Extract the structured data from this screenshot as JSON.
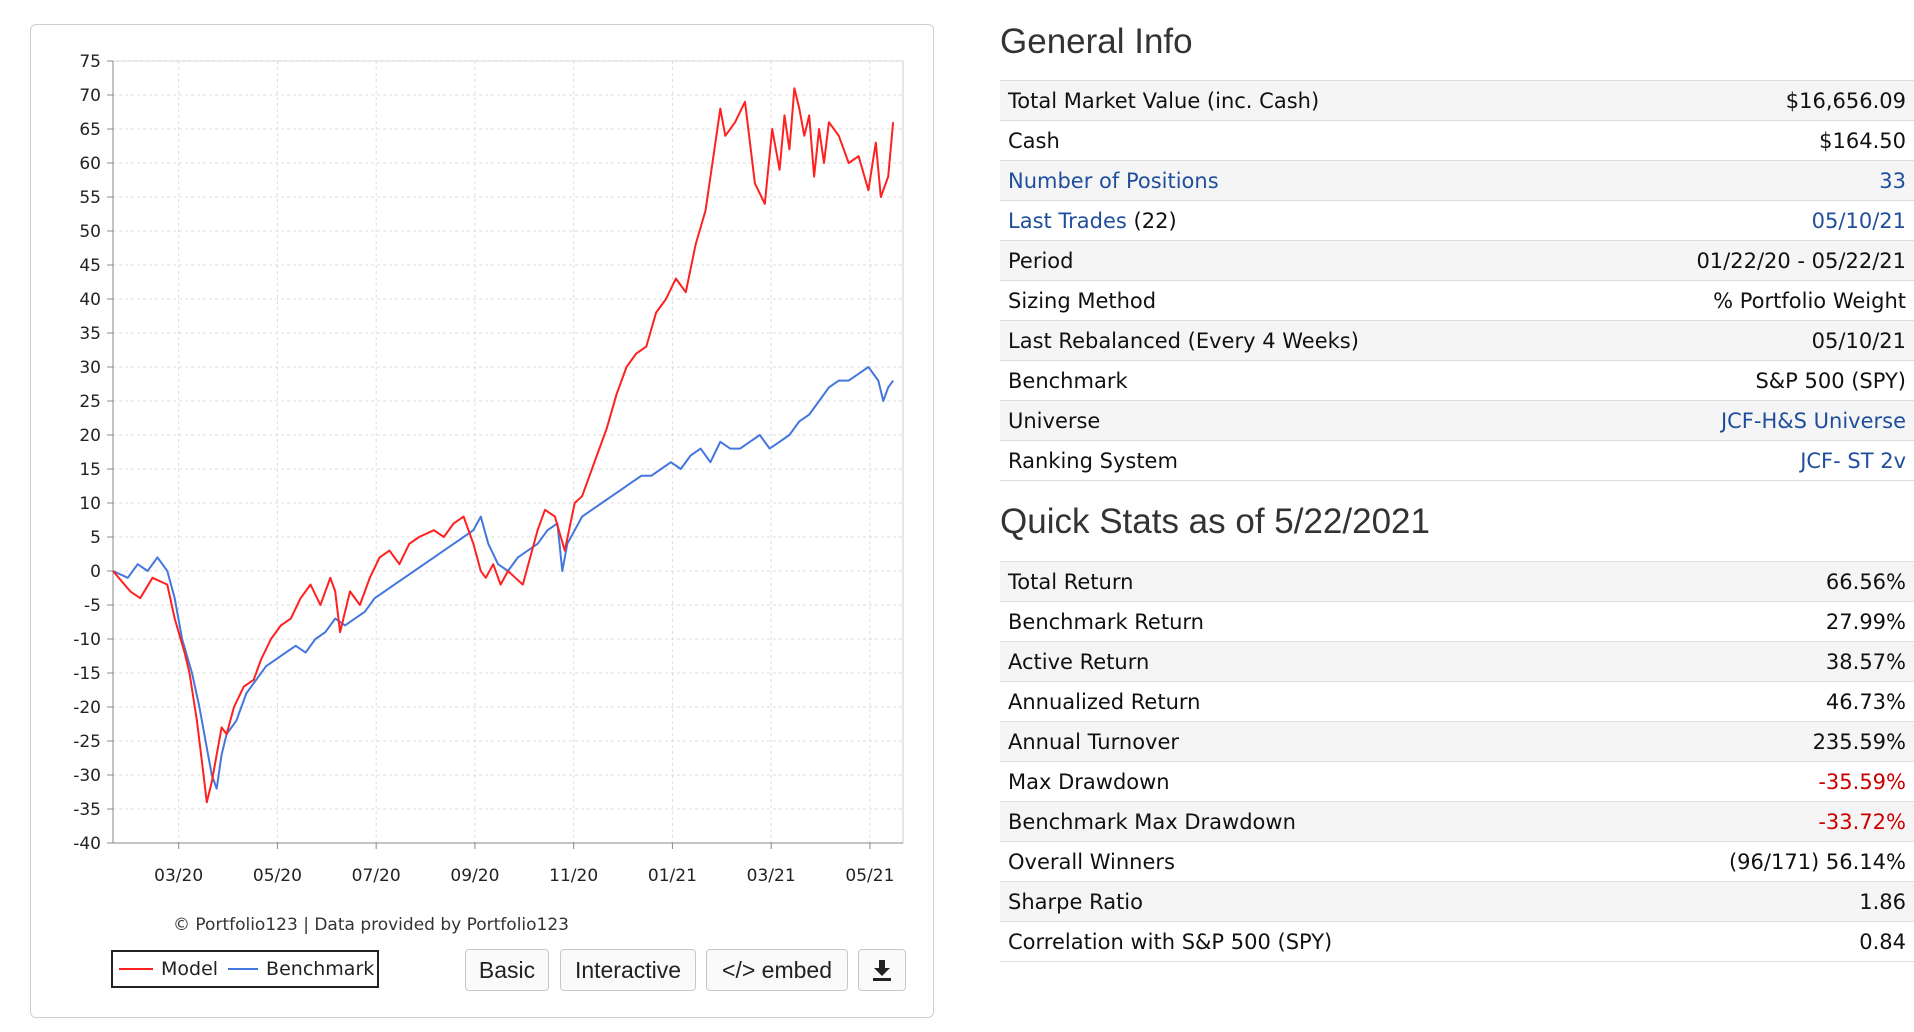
{
  "chart_data": {
    "type": "line",
    "ylim": [
      -40,
      75
    ],
    "y_ticks": [
      75,
      70,
      65,
      60,
      55,
      50,
      45,
      40,
      35,
      30,
      25,
      20,
      15,
      10,
      5,
      0,
      -5,
      -10,
      -15,
      -20,
      -25,
      -30,
      -35,
      -40
    ],
    "x_tick_labels": [
      "03/20",
      "05/20",
      "07/20",
      "09/20",
      "11/20",
      "01/21",
      "03/21",
      "05/21"
    ],
    "x_tick_months": [
      1.33,
      3.33,
      5.33,
      7.33,
      9.33,
      11.33,
      13.33,
      15.33
    ],
    "xlim_months": [
      0,
      16
    ],
    "grid": true,
    "credit": "© Portfolio123 | Data provided by Portfolio123",
    "series": [
      {
        "name": "Model",
        "color": "#ff2020",
        "x": [
          0,
          0.35,
          0.55,
          0.8,
          1.1,
          1.25,
          1.45,
          1.55,
          1.7,
          1.8,
          1.9,
          2.0,
          2.1,
          2.2,
          2.3,
          2.45,
          2.65,
          2.85,
          3.0,
          3.2,
          3.4,
          3.6,
          3.8,
          4.0,
          4.2,
          4.4,
          4.5,
          4.6,
          4.8,
          5.0,
          5.2,
          5.4,
          5.6,
          5.8,
          6.0,
          6.2,
          6.5,
          6.7,
          6.9,
          7.1,
          7.3,
          7.45,
          7.55,
          7.7,
          7.85,
          8.0,
          8.15,
          8.3,
          8.45,
          8.6,
          8.75,
          8.95,
          9.15,
          9.35,
          9.5,
          9.65,
          9.8,
          10.0,
          10.2,
          10.4,
          10.6,
          10.8,
          11.0,
          11.2,
          11.4,
          11.6,
          11.8,
          12.0,
          12.2,
          12.3,
          12.4,
          12.6,
          12.8,
          13.0,
          13.2,
          13.35,
          13.5,
          13.6,
          13.7,
          13.8,
          13.9,
          14.0,
          14.1,
          14.2,
          14.3,
          14.4,
          14.5,
          14.7,
          14.9,
          15.1,
          15.3,
          15.45,
          15.55,
          15.7,
          15.8
        ],
        "values": [
          0,
          -3,
          -4,
          -1,
          -2,
          -7,
          -12,
          -15,
          -22,
          -28,
          -34,
          -31,
          -27,
          -23,
          -24,
          -20,
          -17,
          -16,
          -13,
          -10,
          -8,
          -7,
          -4,
          -2,
          -5,
          -1,
          -3,
          -9,
          -3,
          -5,
          -1,
          2,
          3,
          1,
          4,
          5,
          6,
          5,
          7,
          8,
          4,
          0,
          -1,
          1,
          -2,
          0,
          -1,
          -2,
          2,
          6,
          9,
          8,
          3,
          10,
          11,
          14,
          17,
          21,
          26,
          30,
          32,
          33,
          38,
          40,
          43,
          41,
          48,
          53,
          63,
          68,
          64,
          66,
          69,
          57,
          54,
          65,
          59,
          67,
          62,
          71,
          68,
          64,
          67,
          58,
          65,
          60,
          66,
          64,
          60,
          61,
          56,
          63,
          55,
          58,
          66
        ]
      },
      {
        "name": "Benchmark",
        "color": "#4477dd",
        "x": [
          0,
          0.3,
          0.5,
          0.7,
          0.9,
          1.0,
          1.1,
          1.25,
          1.4,
          1.6,
          1.75,
          1.9,
          2.0,
          2.1,
          2.2,
          2.3,
          2.5,
          2.7,
          2.9,
          3.1,
          3.3,
          3.5,
          3.7,
          3.9,
          4.1,
          4.3,
          4.5,
          4.7,
          4.9,
          5.1,
          5.3,
          5.5,
          5.7,
          5.9,
          6.1,
          6.3,
          6.5,
          6.7,
          6.9,
          7.1,
          7.3,
          7.45,
          7.6,
          7.8,
          8.0,
          8.2,
          8.4,
          8.6,
          8.8,
          9.0,
          9.1,
          9.2,
          9.35,
          9.5,
          9.7,
          9.9,
          10.1,
          10.3,
          10.5,
          10.7,
          10.9,
          11.1,
          11.3,
          11.5,
          11.7,
          11.9,
          12.1,
          12.3,
          12.5,
          12.7,
          12.9,
          13.1,
          13.3,
          13.5,
          13.7,
          13.9,
          14.1,
          14.3,
          14.5,
          14.7,
          14.9,
          15.1,
          15.3,
          15.5,
          15.6,
          15.7,
          15.8
        ],
        "values": [
          0,
          -1,
          1,
          0,
          2,
          1,
          0,
          -4,
          -10,
          -15,
          -20,
          -26,
          -30,
          -32,
          -27,
          -24,
          -22,
          -18,
          -16,
          -14,
          -13,
          -12,
          -11,
          -12,
          -10,
          -9,
          -7,
          -8,
          -7,
          -6,
          -4,
          -3,
          -2,
          -1,
          0,
          1,
          2,
          3,
          4,
          5,
          6,
          8,
          4,
          1,
          0,
          2,
          3,
          4,
          6,
          7,
          0,
          4,
          6,
          8,
          9,
          10,
          11,
          12,
          13,
          14,
          14,
          15,
          16,
          15,
          17,
          18,
          16,
          19,
          18,
          18,
          19,
          20,
          18,
          19,
          20,
          22,
          23,
          25,
          27,
          28,
          28,
          29,
          30,
          28,
          25,
          27,
          28
        ]
      }
    ]
  },
  "legend": {
    "model": "Model",
    "benchmark": "Benchmark"
  },
  "buttons": {
    "basic": "Basic",
    "interactive": "Interactive",
    "embed": "</> embed"
  },
  "general": {
    "title": "General Info",
    "rows": [
      {
        "label": "Total Market Value (inc. Cash)",
        "value": "$16,656.09"
      },
      {
        "label": "Cash",
        "value": "$164.50"
      },
      {
        "label": "Number of Positions",
        "value": "33"
      },
      {
        "label": "Last Trades",
        "count": "(22)",
        "value": "05/10/21"
      },
      {
        "label": "Period",
        "value": "01/22/20 - 05/22/21"
      },
      {
        "label": "Sizing Method",
        "value": "% Portfolio Weight"
      },
      {
        "label": "Last Rebalanced (Every 4 Weeks)",
        "value": "05/10/21"
      },
      {
        "label": "Benchmark",
        "value": "S&P 500 (SPY)"
      },
      {
        "label": "Universe",
        "value": "JCF-H&S Universe"
      },
      {
        "label": "Ranking System",
        "value": "JCF- ST 2v"
      }
    ]
  },
  "stats": {
    "title": "Quick Stats as of 5/22/2021",
    "rows": [
      {
        "label": "Total Return",
        "value": "66.56%"
      },
      {
        "label": "Benchmark Return",
        "value": "27.99%"
      },
      {
        "label": "Active Return",
        "value": "38.57%"
      },
      {
        "label": "Annualized Return",
        "value": "46.73%"
      },
      {
        "label": "Annual Turnover",
        "value": "235.59%"
      },
      {
        "label": "Max Drawdown",
        "value": "-35.59%"
      },
      {
        "label": "Benchmark Max Drawdown",
        "value": "-33.72%"
      },
      {
        "label": "Overall Winners",
        "value": "(96/171) 56.14%"
      },
      {
        "label": "Sharpe Ratio",
        "value": "1.86"
      },
      {
        "label": "Correlation with S&P 500 (SPY)",
        "value": "0.84"
      }
    ]
  }
}
